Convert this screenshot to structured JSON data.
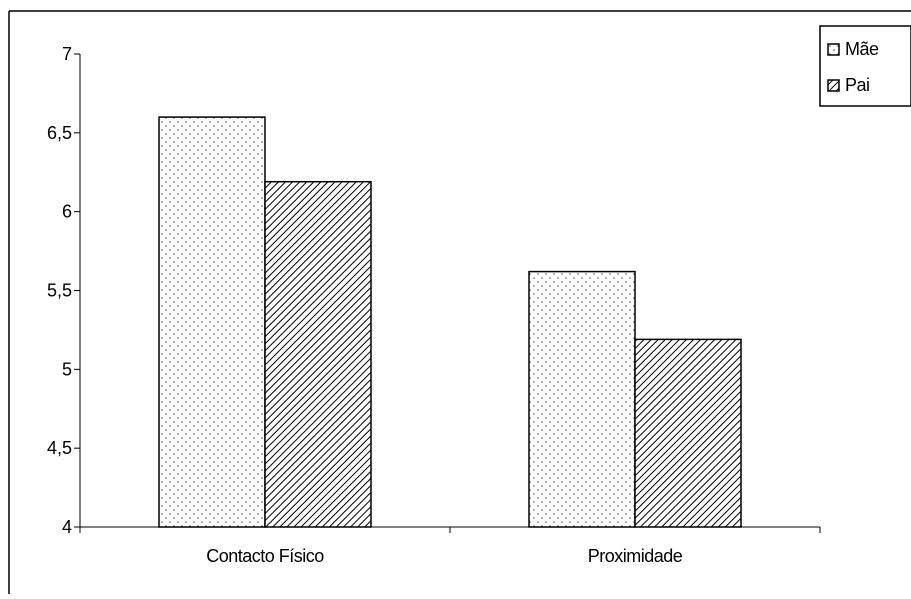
{
  "chart_data": {
    "type": "bar",
    "title": "",
    "xlabel": "",
    "ylabel": "",
    "categories": [
      "Contacto Físico",
      "Proximidade"
    ],
    "series": [
      {
        "name": "Mãe",
        "values": [
          6.6,
          5.62
        ],
        "pattern": "dots",
        "color": "#ffffff"
      },
      {
        "name": "Pai",
        "values": [
          6.19,
          5.19
        ],
        "pattern": "diagonal-hatch",
        "color": "#ffffff"
      }
    ],
    "ylim": [
      4,
      7
    ],
    "yticks": [
      "4",
      "4,5",
      "5",
      "5,5",
      "6",
      "6,5",
      "7"
    ],
    "ytick_values": [
      4,
      4.5,
      5,
      5.5,
      6,
      6.5,
      7
    ],
    "grid": false,
    "legend_position": "top-right"
  }
}
